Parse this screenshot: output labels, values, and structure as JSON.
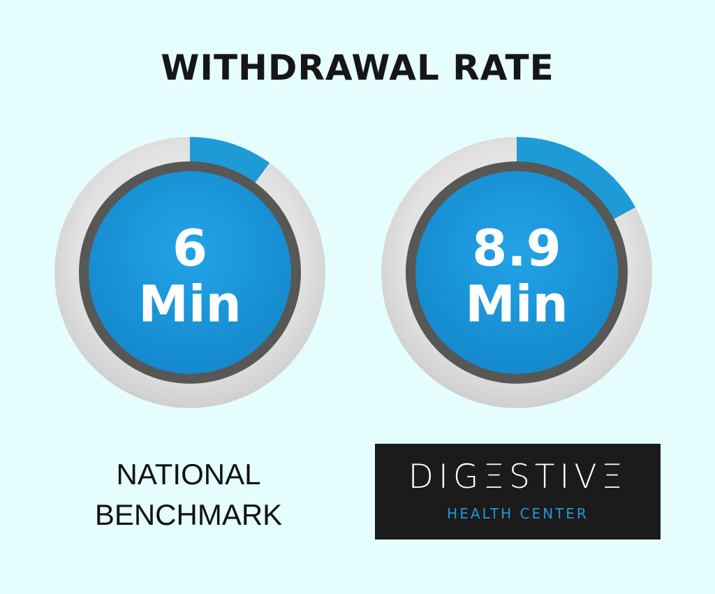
{
  "title": "WITHDRAWAL RATE",
  "colors": {
    "background": "#e6fdfd",
    "ring_track": "#e0e0e0",
    "ring_fill": "#1e9ad6",
    "inner_border": "#575755",
    "inner_fill": "#1a95dc",
    "logo_bg": "#1b1b1b",
    "logo_accent": "#1e9ad6"
  },
  "chart_data": [
    {
      "type": "gauge",
      "label": "NATIONAL BENCHMARK",
      "value": 6,
      "value_text": "6",
      "unit": "Min",
      "fill_fraction": 0.1
    },
    {
      "type": "gauge",
      "label": "DIGESTIVE HEALTH CENTER",
      "value": 8.9,
      "value_text": "8.9",
      "unit": "Min",
      "fill_fraction": 0.17
    }
  ],
  "captions": {
    "left_line1": "NATIONAL",
    "left_line2": "BENCHMARK"
  },
  "logo": {
    "main": "DIGΞSTIVΞ",
    "sub": "HEALTH CENTER"
  }
}
